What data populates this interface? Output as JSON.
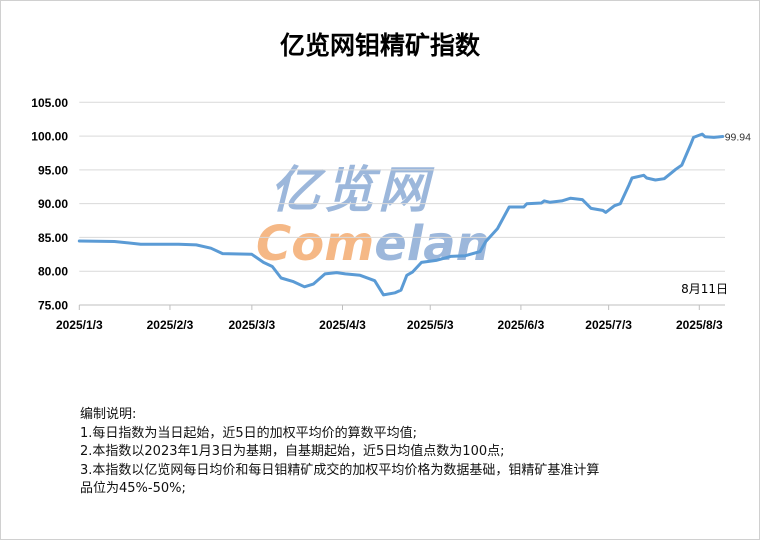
{
  "title": "亿览网钼精矿指数",
  "watermark": {
    "line1": "亿览网",
    "line2a": "Com",
    "line2b": "elan",
    "colors": {
      "blue": "#7b9fcf",
      "orange": "#f2a15e"
    }
  },
  "chart_data": {
    "type": "line",
    "title": "亿览网钼精矿指数",
    "xlabel": "",
    "ylabel": "",
    "ylim": [
      75,
      105
    ],
    "yticks": [
      "105.00",
      "100.00",
      "95.00",
      "90.00",
      "85.00",
      "80.00",
      "75.00"
    ],
    "xticks": [
      "2025/1/3",
      "2025/2/3",
      "2025/3/3",
      "2025/4/3",
      "2025/5/3",
      "2025/6/3",
      "2025/7/3",
      "2025/8/3"
    ],
    "grid": true,
    "line_color": "#5b9bd5",
    "end_label": "99.94",
    "date_annotation": "8月11日",
    "series": [
      {
        "x": [
          "2025-01-03",
          "2025-01-15",
          "2025-01-24",
          "2025-02-06",
          "2025-02-12",
          "2025-02-17",
          "2025-02-21",
          "2025-03-03",
          "2025-03-07",
          "2025-03-10",
          "2025-03-13",
          "2025-03-17",
          "2025-03-21",
          "2025-03-24",
          "2025-03-28",
          "2025-04-01",
          "2025-04-04",
          "2025-04-09",
          "2025-04-14",
          "2025-04-17",
          "2025-04-21",
          "2025-04-23",
          "2025-04-25",
          "2025-04-27",
          "2025-04-30",
          "2025-05-05",
          "2025-05-10",
          "2025-05-15",
          "2025-05-20",
          "2025-05-22",
          "2025-05-26",
          "2025-05-30",
          "2025-06-04",
          "2025-06-05",
          "2025-06-10",
          "2025-06-11",
          "2025-06-13",
          "2025-06-17",
          "2025-06-20",
          "2025-06-24",
          "2025-06-27",
          "2025-07-01",
          "2025-07-02",
          "2025-07-05",
          "2025-07-07",
          "2025-07-10",
          "2025-07-11",
          "2025-07-15",
          "2025-07-16",
          "2025-07-19",
          "2025-07-22",
          "2025-07-24",
          "2025-07-26",
          "2025-07-28",
          "2025-07-31",
          "2025-08-01",
          "2025-08-04",
          "2025-08-05",
          "2025-08-08",
          "2025-08-11"
        ],
        "y": [
          84.47,
          84.4,
          84.0,
          84.0,
          83.9,
          83.4,
          82.6,
          82.5,
          81.3,
          80.7,
          79.0,
          78.5,
          77.7,
          78.1,
          79.6,
          79.8,
          79.6,
          79.4,
          78.6,
          76.5,
          76.8,
          77.2,
          79.4,
          79.9,
          81.3,
          81.6,
          82.2,
          82.3,
          82.9,
          84.4,
          86.3,
          89.5,
          89.5,
          90.0,
          90.1,
          90.4,
          90.2,
          90.4,
          90.8,
          90.6,
          89.3,
          89.0,
          88.7,
          89.7,
          90.0,
          92.8,
          93.8,
          94.2,
          93.8,
          93.5,
          93.7,
          94.4,
          95.1,
          95.7,
          98.7,
          99.8,
          100.3,
          99.9,
          99.8,
          99.94
        ]
      }
    ]
  },
  "notes": {
    "heading": "编制说明:",
    "lines": [
      "1.每日指数为当日起始，近5日的加权平均价的算数平均值;",
      "2.本指数以2023年1月3日为基期，自基期起始，近5日均值点数为100点;",
      "3.本指数以亿览网每日均价和每日钼精矿成交的加权平均价格为数据基础，钼精矿基准计算",
      "品位为45%-50%;"
    ]
  }
}
